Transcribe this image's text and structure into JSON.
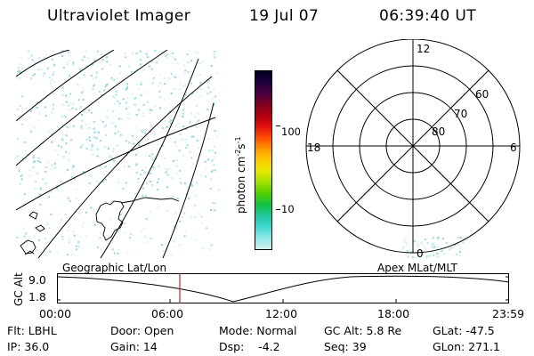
{
  "header": {
    "title": "Ultraviolet Imager",
    "date": "19 Jul 07",
    "time": "06:39:40 UT"
  },
  "colorbar": {
    "unit": "photon cm^-2 s^-1",
    "ticks": [
      "100",
      "10"
    ],
    "colors": [
      "#000020",
      "#200040",
      "#4a0040",
      "#800020",
      "#b00010",
      "#e01010",
      "#ff5000",
      "#ff9900",
      "#ffcc00",
      "#e8e800",
      "#a0e000",
      "#50d000",
      "#10c040",
      "#20c8a0",
      "#40d8d0",
      "#90e8e8",
      "#d0f0f0"
    ]
  },
  "polar_plot": {
    "labels": {
      "top": "12",
      "left": "18",
      "right": "6",
      "bottom": "0"
    },
    "rings": [
      "60",
      "70",
      "80"
    ]
  },
  "geo_map": {
    "label": "Geographic Lat/Lon"
  },
  "apex": {
    "label": "Apex  MLat/MLT"
  },
  "altitude_plot": {
    "ylabel": "GC Alt",
    "yticks": [
      "9.0",
      "1.8"
    ],
    "xticks": [
      "00:00",
      "06:00",
      "12:00",
      "18:00",
      "23:59"
    ],
    "current_time_color": "#b03030"
  },
  "info": {
    "flt": "Flt: LBHL",
    "ip": "IP: 36.0",
    "door": "Door: Open",
    "gain": "Gain: 14",
    "mode": "Mode: Normal",
    "dsp": "Dsp:    -4.2",
    "gc_alt": "GC Alt: 5.8 Re",
    "seq": "Seq: 39",
    "glat": "GLat: -47.5",
    "glon": "GLon: 271.1"
  }
}
